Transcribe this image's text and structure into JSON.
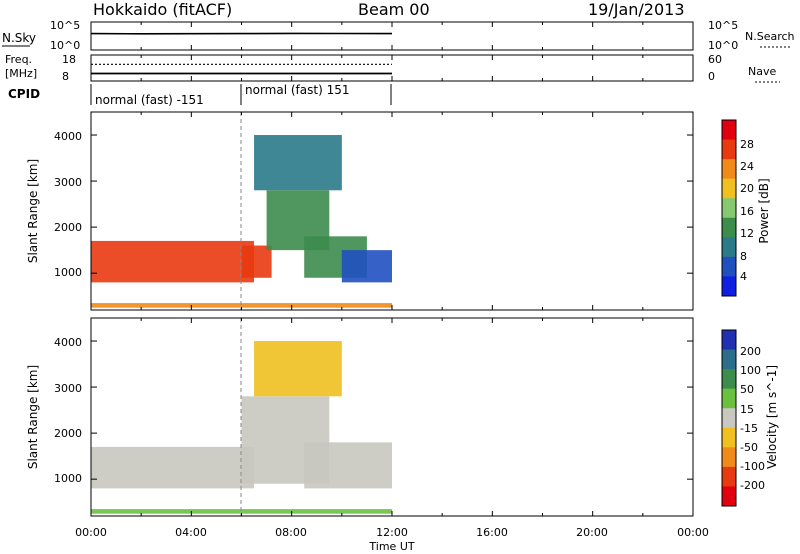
{
  "header": {
    "title": "Hokkaido (fitACF)",
    "beam": "Beam 00",
    "date": "19/Jan/2013"
  },
  "top_panels": {
    "nsky_label": "N.Sky",
    "nsky_ticks": [
      "10^5",
      "10^0"
    ],
    "nsearch_label": "N.Search",
    "nsearch_ticks": [
      "10^5",
      "10^0"
    ],
    "freq_label_line1": "Freq.",
    "freq_label_line2": "[MHz]",
    "freq_ticks": [
      "18",
      "8"
    ],
    "nave_label": "Nave",
    "nave_ticks": [
      "60",
      "0"
    ],
    "cpid_label": "CPID",
    "cpid_segments": [
      {
        "label": "normal (fast) -151",
        "start": "00:00",
        "end": "06:00"
      },
      {
        "label": "normal (fast) 151",
        "start": "06:00",
        "end": "12:00"
      }
    ]
  },
  "x_axis": {
    "label": "Time UT",
    "ticks": [
      "00:00",
      "04:00",
      "08:00",
      "12:00",
      "16:00",
      "20:00",
      "00:00"
    ]
  },
  "power_panel": {
    "y_label": "Slant Range [km]",
    "y_ticks": [
      "1000",
      "2000",
      "3000",
      "4000"
    ],
    "colorbar_label": "Power [dB]",
    "colorbar_ticks": [
      "4",
      "8",
      "12",
      "16",
      "20",
      "24",
      "28"
    ],
    "colorbar_colors": [
      "#1020e0",
      "#2050c0",
      "#2a7a8a",
      "#3c8c4c",
      "#86c870",
      "#f0c020",
      "#f08a18",
      "#e83a10",
      "#e00010"
    ]
  },
  "velocity_panel": {
    "y_label": "Slant Range [km]",
    "y_ticks": [
      "1000",
      "2000",
      "3000",
      "4000"
    ],
    "colorbar_label": "Velocity [m s^-1]",
    "colorbar_ticks": [
      "200",
      "100",
      "50",
      "15",
      "-15",
      "-50",
      "-100",
      "-200"
    ],
    "colorbar_colors": [
      "#2030b0",
      "#2a6e8c",
      "#3c8c4c",
      "#6cc040",
      "#c8c8c0",
      "#f0c020",
      "#f08a18",
      "#e83a10",
      "#e00010"
    ]
  },
  "chart_data": [
    {
      "type": "line",
      "title": "N.Sky / N.Search",
      "xlabel": "Time UT",
      "ylabel": "N.Sky",
      "y_scale": "log",
      "ylim": [
        1,
        100000
      ],
      "x": [
        "00:00",
        "02:00",
        "04:00",
        "06:00",
        "08:00",
        "10:00",
        "12:00"
      ],
      "series": [
        {
          "name": "N.Sky",
          "values": [
            1000,
            900,
            950,
            1000,
            1100,
            1050,
            1000
          ]
        }
      ]
    },
    {
      "type": "line",
      "title": "Freq. / Nave",
      "ylabel": "Freq. [MHz]",
      "ylim": [
        8,
        18
      ],
      "x": [
        "00:00",
        "06:00",
        "12:00"
      ],
      "series": [
        {
          "name": "Freq.",
          "values": [
            10.5,
            10.5,
            10.5
          ]
        },
        {
          "name": "Nave",
          "values": [
            40,
            40,
            40
          ]
        }
      ]
    },
    {
      "type": "heatmap",
      "title": "Power [dB]",
      "xlabel": "Time UT",
      "ylabel": "Slant Range [km]",
      "xlim": [
        "00:00",
        "24:00"
      ],
      "ylim": [
        200,
        4500
      ],
      "zlim": [
        0,
        32
      ],
      "regions": [
        {
          "t_start": 0.0,
          "t_end": 6.5,
          "r_min": 800,
          "r_max": 1700,
          "value": 26
        },
        {
          "t_start": 6.0,
          "t_end": 7.2,
          "r_min": 900,
          "r_max": 1600,
          "value": 28
        },
        {
          "t_start": 7.0,
          "t_end": 9.5,
          "r_min": 1500,
          "r_max": 2800,
          "value": 14
        },
        {
          "t_start": 8.5,
          "t_end": 11.0,
          "r_min": 900,
          "r_max": 1800,
          "value": 12
        },
        {
          "t_start": 10.0,
          "t_end": 12.0,
          "r_min": 800,
          "r_max": 1500,
          "value": 6
        },
        {
          "t_start": 0.0,
          "t_end": 12.0,
          "r_min": 250,
          "r_max": 350,
          "value": 22
        },
        {
          "t_start": 6.5,
          "t_end": 10.0,
          "r_min": 2800,
          "r_max": 4000,
          "value": 8
        }
      ]
    },
    {
      "type": "heatmap",
      "title": "Velocity [m s^-1]",
      "xlabel": "Time UT",
      "ylabel": "Slant Range [km]",
      "xlim": [
        "00:00",
        "24:00"
      ],
      "ylim": [
        200,
        4500
      ],
      "zlim": [
        -250,
        250
      ],
      "regions": [
        {
          "t_start": 0.0,
          "t_end": 6.5,
          "r_min": 800,
          "r_max": 1700,
          "value": 0
        },
        {
          "t_start": 6.0,
          "t_end": 9.5,
          "r_min": 900,
          "r_max": 2800,
          "value": 0
        },
        {
          "t_start": 8.5,
          "t_end": 12.0,
          "r_min": 800,
          "r_max": 1800,
          "value": 5
        },
        {
          "t_start": 0.0,
          "t_end": 12.0,
          "r_min": 250,
          "r_max": 350,
          "value": 30
        },
        {
          "t_start": 6.5,
          "t_end": 10.0,
          "r_min": 2800,
          "r_max": 4000,
          "value": -30
        }
      ]
    }
  ]
}
